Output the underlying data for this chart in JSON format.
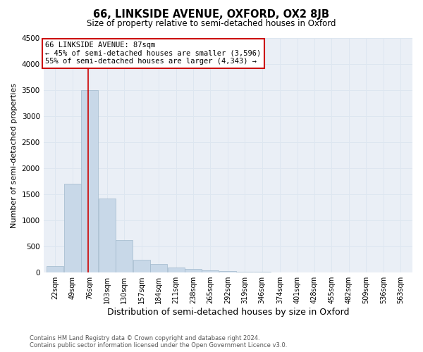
{
  "title": "66, LINKSIDE AVENUE, OXFORD, OX2 8JB",
  "subtitle": "Size of property relative to semi-detached houses in Oxford",
  "xlabel": "Distribution of semi-detached houses by size in Oxford",
  "ylabel": "Number of semi-detached properties",
  "footnote": "Contains HM Land Registry data © Crown copyright and database right 2024.\nContains public sector information licensed under the Open Government Licence v3.0.",
  "bin_labels": [
    "22sqm",
    "49sqm",
    "76sqm",
    "103sqm",
    "130sqm",
    "157sqm",
    "184sqm",
    "211sqm",
    "238sqm",
    "265sqm",
    "292sqm",
    "319sqm",
    "346sqm",
    "374sqm",
    "401sqm",
    "428sqm",
    "455sqm",
    "482sqm",
    "509sqm",
    "536sqm",
    "563sqm"
  ],
  "bin_edges": [
    22,
    49,
    76,
    103,
    130,
    157,
    184,
    211,
    238,
    265,
    292,
    319,
    346,
    374,
    401,
    428,
    455,
    482,
    509,
    536,
    563
  ],
  "bar_heights": [
    120,
    1700,
    3500,
    1425,
    620,
    250,
    160,
    100,
    70,
    50,
    30,
    20,
    15,
    8,
    5,
    3,
    2,
    1,
    1,
    1,
    0
  ],
  "bar_color": "#c8d8e8",
  "bar_edge_color": "#a0b8cc",
  "grid_color": "#dde6f0",
  "background_color": "#eaeff6",
  "property_size": 87,
  "property_label": "66 LINKSIDE AVENUE: 87sqm",
  "annotation_line1": "← 45% of semi-detached houses are smaller (3,596)",
  "annotation_line2": "55% of semi-detached houses are larger (4,343) →",
  "vline_color": "#cc0000",
  "annotation_box_color": "#cc0000",
  "ylim": [
    0,
    4500
  ],
  "yticks": [
    0,
    500,
    1000,
    1500,
    2000,
    2500,
    3000,
    3500,
    4000,
    4500
  ]
}
